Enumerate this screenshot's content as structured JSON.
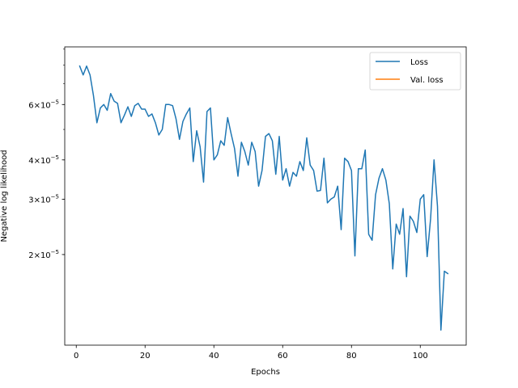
{
  "chart_data": {
    "type": "line",
    "xlabel": "Epochs",
    "ylabel": "Negative log likelihood",
    "y_scale": "log",
    "grid": false,
    "legend_position": "top-right",
    "xlim": [
      -3.35,
      113.35
    ],
    "ylim": [
      1.03e-05,
      9.15e-05
    ],
    "x_ticks": [
      {
        "value": 0,
        "label": "0"
      },
      {
        "value": 20,
        "label": "20"
      },
      {
        "value": 40,
        "label": "40"
      },
      {
        "value": 60,
        "label": "60"
      },
      {
        "value": 80,
        "label": "80"
      },
      {
        "value": 100,
        "label": "100"
      }
    ],
    "y_ticks": [
      {
        "value": 2e-05,
        "base": "2",
        "sup": "−5"
      },
      {
        "value": 3e-05,
        "base": "3",
        "sup": "−5"
      },
      {
        "value": 4e-05,
        "base": "4",
        "sup": "−5"
      },
      {
        "value": 6e-05,
        "base": "6",
        "sup": "−5"
      }
    ],
    "series": [
      {
        "name": "Loss",
        "color": "#1f77b4",
        "x": [
          1,
          2,
          3,
          4,
          5,
          6,
          7,
          8,
          9,
          10,
          11,
          12,
          13,
          14,
          15,
          16,
          17,
          18,
          19,
          20,
          21,
          22,
          23,
          24,
          25,
          26,
          27,
          28,
          29,
          30,
          31,
          32,
          33,
          34,
          35,
          36,
          37,
          38,
          39,
          40,
          41,
          42,
          43,
          44,
          45,
          46,
          47,
          48,
          49,
          50,
          51,
          52,
          53,
          54,
          55,
          56,
          57,
          58,
          59,
          60,
          61,
          62,
          63,
          64,
          65,
          66,
          67,
          68,
          69,
          70,
          71,
          72,
          73,
          74,
          75,
          76,
          77,
          78,
          79,
          80,
          81,
          82,
          83,
          84,
          85,
          86,
          87,
          88,
          89,
          90,
          91,
          92,
          93,
          94,
          95,
          96,
          97,
          98,
          99,
          100,
          101,
          102,
          103,
          104,
          105,
          106,
          107,
          108
        ],
        "y": [
          7.95e-05,
          7.45e-05,
          7.95e-05,
          7.45e-05,
          6.4e-05,
          5.25e-05,
          5.85e-05,
          6e-05,
          5.75e-05,
          6.5e-05,
          6.15e-05,
          6.05e-05,
          5.25e-05,
          5.55e-05,
          5.9e-05,
          5.5e-05,
          5.95e-05,
          6.05e-05,
          5.8e-05,
          5.8e-05,
          5.5e-05,
          5.6e-05,
          5.25e-05,
          4.8e-05,
          5e-05,
          6e-05,
          6e-05,
          5.95e-05,
          5.4e-05,
          4.65e-05,
          5.3e-05,
          5.6e-05,
          5.85e-05,
          3.95e-05,
          4.95e-05,
          4.4e-05,
          3.4e-05,
          5.7e-05,
          5.85e-05,
          4e-05,
          4.15e-05,
          4.6e-05,
          4.45e-05,
          5.45e-05,
          4.85e-05,
          4.35e-05,
          3.55e-05,
          4.55e-05,
          4.25e-05,
          3.85e-05,
          4.55e-05,
          4.25e-05,
          3.3e-05,
          3.7e-05,
          4.75e-05,
          4.85e-05,
          4.6e-05,
          3.6e-05,
          4.75e-05,
          3.45e-05,
          3.75e-05,
          3.3e-05,
          3.65e-05,
          3.55e-05,
          3.95e-05,
          3.7e-05,
          4.7e-05,
          3.85e-05,
          3.7e-05,
          3.18e-05,
          3.2e-05,
          4.05e-05,
          2.92e-05,
          3e-05,
          3.05e-05,
          3.3e-05,
          2.4e-05,
          4.05e-05,
          3.95e-05,
          3.7e-05,
          1.98e-05,
          3.75e-05,
          3.75e-05,
          4.3e-05,
          2.32e-05,
          2.22e-05,
          3.1e-05,
          3.5e-05,
          3.75e-05,
          3.45e-05,
          2.9e-05,
          1.8e-05,
          2.5e-05,
          2.32e-05,
          2.8e-05,
          1.7e-05,
          2.65e-05,
          2.55e-05,
          2.35e-05,
          3e-05,
          3.1e-05,
          1.97e-05,
          2.6e-05,
          4e-05,
          2.85e-05,
          1.15e-05,
          1.77e-05,
          1.74e-05
        ]
      },
      {
        "name": "Val. loss",
        "color": "#ff7f0e",
        "x": [],
        "y": []
      }
    ]
  }
}
